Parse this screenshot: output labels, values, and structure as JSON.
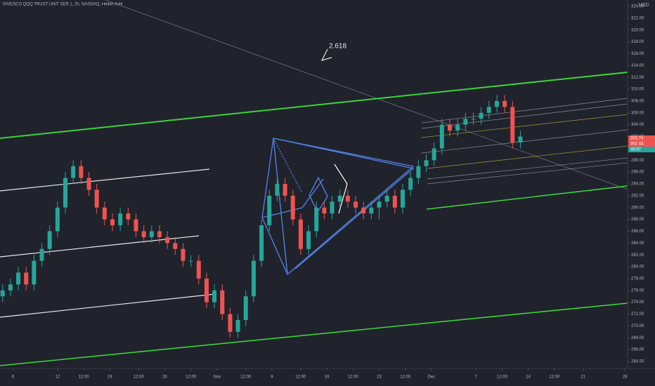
{
  "chart_data": {
    "type": "candlestick",
    "title": "INVESCO QQQ TRUST UNIT SER 1, 2h, NASDAQ, Heikin Ashi",
    "currency": "USD",
    "annotation": "2.618",
    "price_labels": [
      {
        "text": "302.74",
        "color": "#ef5350"
      },
      {
        "text": "302.44",
        "color": "#ef5350"
      },
      {
        "text": "49:57",
        "color": "#26a69a"
      }
    ],
    "up_color": "#26a69a",
    "down_color": "#ef5350",
    "x": [
      1,
      4,
      7,
      10,
      13,
      16,
      19,
      22,
      25,
      28,
      31,
      34,
      37,
      40,
      43,
      46,
      49,
      52,
      55,
      58,
      61,
      64,
      67,
      70,
      73,
      76,
      79,
      82,
      85,
      88,
      91,
      94,
      97,
      100,
      103,
      106,
      109,
      112,
      115,
      118,
      121,
      124,
      127,
      130,
      133,
      136,
      139,
      142,
      145,
      148,
      151,
      154,
      157,
      160,
      163,
      166,
      169,
      172,
      175,
      178,
      181,
      184,
      187,
      190,
      193,
      196,
      199
    ],
    "open": [
      275,
      276,
      277,
      279,
      277,
      281,
      283,
      286,
      290,
      295,
      297,
      295,
      293,
      290,
      288,
      287,
      289,
      288,
      286,
      285,
      286,
      285,
      284,
      283,
      281,
      281,
      278,
      274,
      276,
      272,
      269,
      271,
      275,
      281,
      287,
      292,
      294,
      292,
      288,
      283,
      286,
      290,
      289,
      291,
      292,
      291,
      290,
      289,
      290,
      291,
      292,
      290,
      293,
      295,
      297,
      298,
      300,
      304,
      303,
      304,
      305,
      305,
      306,
      307,
      308,
      307,
      301
    ],
    "high": [
      277,
      278,
      280,
      280,
      282,
      284,
      287,
      291,
      296,
      298,
      298,
      296,
      294,
      291,
      289,
      290,
      290,
      289,
      287,
      287,
      287,
      286,
      285,
      284,
      282,
      282,
      279,
      277,
      277,
      273,
      272,
      276,
      282,
      288,
      293,
      295,
      295,
      293,
      289,
      287,
      291,
      291,
      292,
      293,
      293,
      292,
      291,
      291,
      292,
      293,
      293,
      294,
      296,
      298,
      299,
      301,
      305,
      305,
      305,
      306,
      306,
      307,
      308,
      309,
      309,
      308,
      303
    ],
    "low": [
      274,
      275,
      276,
      276,
      276,
      280,
      282,
      285,
      289,
      294,
      294,
      292,
      289,
      287,
      286,
      286,
      287,
      285,
      284,
      284,
      284,
      283,
      282,
      280,
      280,
      277,
      273,
      273,
      271,
      268,
      268,
      270,
      274,
      280,
      286,
      291,
      291,
      287,
      282,
      282,
      285,
      288,
      288,
      290,
      290,
      289,
      288,
      288,
      288,
      290,
      289,
      289,
      292,
      294,
      296,
      297,
      299,
      302,
      302,
      303,
      304,
      304,
      305,
      306,
      306,
      300,
      300
    ],
    "close": [
      276,
      277,
      279,
      277,
      281,
      283,
      286,
      290,
      295,
      297,
      295,
      293,
      290,
      288,
      287,
      289,
      288,
      286,
      285,
      286,
      285,
      284,
      283,
      281,
      281,
      278,
      274,
      276,
      272,
      269,
      271,
      275,
      281,
      287,
      292,
      294,
      292,
      288,
      283,
      286,
      290,
      289,
      291,
      292,
      291,
      290,
      289,
      290,
      291,
      292,
      290,
      293,
      295,
      297,
      298,
      300,
      304,
      303,
      304,
      305,
      305,
      306,
      307,
      308,
      307,
      301,
      302
    ],
    "xlim": [
      0,
      240
    ],
    "xticks": [
      {
        "value": 5,
        "label": "6"
      },
      {
        "value": 22,
        "label": "12"
      },
      {
        "value": 32,
        "label": "12:00"
      },
      {
        "value": 42,
        "label": "19"
      },
      {
        "value": 53,
        "label": "12:00"
      },
      {
        "value": 63,
        "label": "26"
      },
      {
        "value": 73,
        "label": "12:00"
      },
      {
        "value": 83,
        "label": "Nov"
      },
      {
        "value": 94,
        "label": "12:00"
      },
      {
        "value": 104,
        "label": "9"
      },
      {
        "value": 115,
        "label": "12:00"
      },
      {
        "value": 125,
        "label": "16"
      },
      {
        "value": 135,
        "label": "12:00"
      },
      {
        "value": 145,
        "label": "23"
      },
      {
        "value": 155,
        "label": "12:00"
      },
      {
        "value": 165,
        "label": "Dec"
      },
      {
        "value": 182,
        "label": "7"
      },
      {
        "value": 192,
        "label": "12:00"
      },
      {
        "value": 202,
        "label": "14"
      },
      {
        "value": 212,
        "label": "12:00"
      },
      {
        "value": 223,
        "label": "21"
      },
      {
        "value": 239,
        "label": "28"
      }
    ],
    "ylim": [
      264,
      324
    ],
    "yticks": [
      {
        "value": 264,
        "label": "264.00"
      },
      {
        "value": 266,
        "label": "266.00"
      },
      {
        "value": 268,
        "label": "268.00"
      },
      {
        "value": 270,
        "label": "270.00"
      },
      {
        "value": 272,
        "label": "272.00"
      },
      {
        "value": 274,
        "label": "274.00"
      },
      {
        "value": 276,
        "label": "276.00"
      },
      {
        "value": 278,
        "label": "278.00"
      },
      {
        "value": 280,
        "label": "280.00"
      },
      {
        "value": 282,
        "label": "282.00"
      },
      {
        "value": 284,
        "label": "284.00"
      },
      {
        "value": 286,
        "label": "286.00"
      },
      {
        "value": 288,
        "label": "288.00"
      },
      {
        "value": 290,
        "label": "290.00"
      },
      {
        "value": 292,
        "label": "292.00"
      },
      {
        "value": 294,
        "label": "294.00"
      },
      {
        "value": 296,
        "label": "296.00"
      },
      {
        "value": 298,
        "label": "298.00"
      },
      {
        "value": 300,
        "label": "300.00"
      },
      {
        "value": 302,
        "label": "302.00"
      },
      {
        "value": 304,
        "label": "304.00"
      },
      {
        "value": 306,
        "label": "306.00"
      },
      {
        "value": 308,
        "label": "308.00"
      },
      {
        "value": 310,
        "label": "310.00"
      },
      {
        "value": 312,
        "label": "312.00"
      },
      {
        "value": 314,
        "label": "314.00"
      },
      {
        "value": 316,
        "label": "316.00"
      },
      {
        "value": 318,
        "label": "318.00"
      },
      {
        "value": 320,
        "label": "320.00"
      },
      {
        "value": 322,
        "label": "322.00"
      },
      {
        "value": 324,
        "label": "324.00"
      }
    ]
  }
}
